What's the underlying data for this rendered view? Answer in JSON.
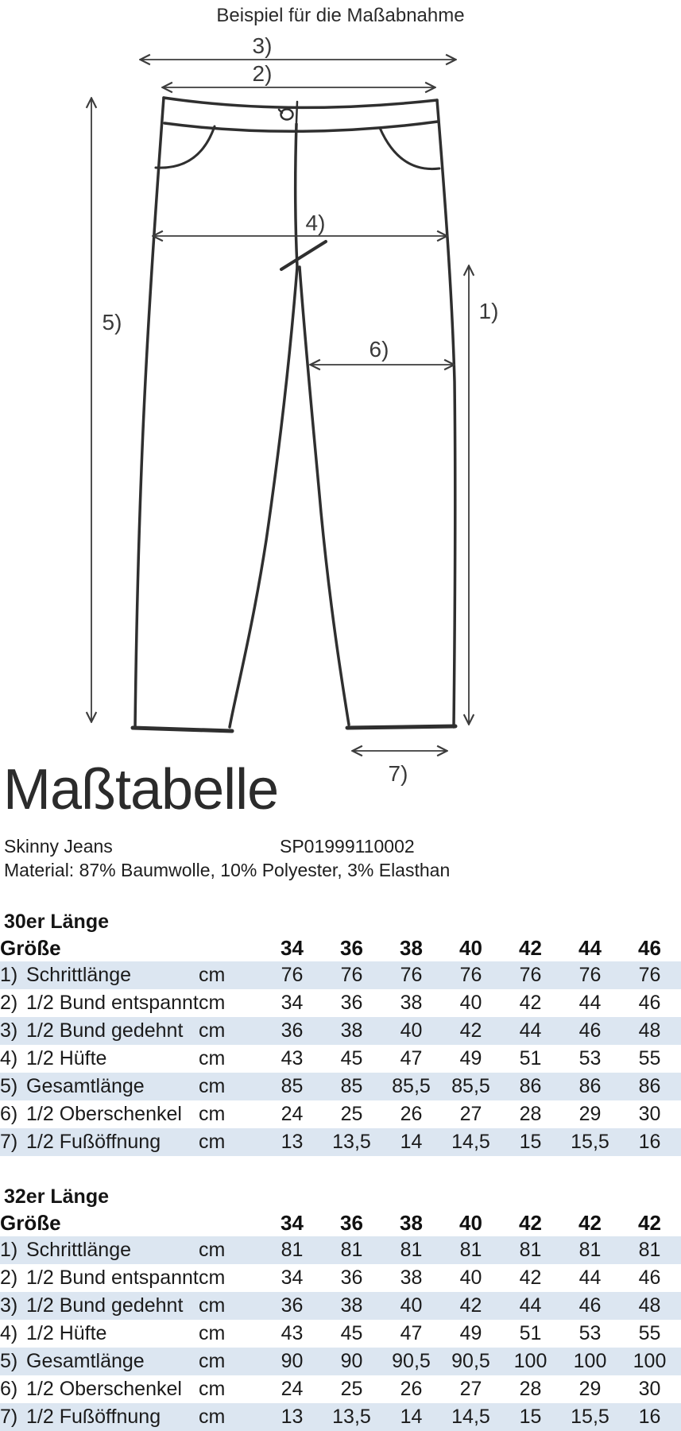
{
  "page_title": "Beispiel für die Maßabnahme",
  "heading": "Maßtabelle",
  "diagram": {
    "labels": [
      "1)",
      "2)",
      "3)",
      "4)",
      "5)",
      "6)",
      "7)"
    ]
  },
  "product": {
    "name": "Skinny Jeans",
    "sku": "SP01999110002",
    "material": "Material: 87% Baumwolle, 10% Polyester, 3% Elasthan"
  },
  "colors": {
    "row_highlight": "#dce6f1",
    "line": "#2f2f2f",
    "arrow": "#3c3c3c"
  },
  "tables": [
    {
      "section_title": "30er Länge",
      "size_row_label": "Größe",
      "sizes": [
        "34",
        "36",
        "38",
        "40",
        "42",
        "44",
        "46"
      ],
      "rows": [
        {
          "num": "1)",
          "name": "Schrittlänge",
          "unit": "cm",
          "values": [
            "76",
            "76",
            "76",
            "76",
            "76",
            "76",
            "76"
          ]
        },
        {
          "num": "2)",
          "name": "1/2 Bund entspannt",
          "unit": "cm",
          "values": [
            "34",
            "36",
            "38",
            "40",
            "42",
            "44",
            "46"
          ]
        },
        {
          "num": "3)",
          "name": "1/2 Bund gedehnt",
          "unit": "cm",
          "values": [
            "36",
            "38",
            "40",
            "42",
            "44",
            "46",
            "48"
          ]
        },
        {
          "num": "4)",
          "name": "1/2 Hüfte",
          "unit": "cm",
          "values": [
            "43",
            "45",
            "47",
            "49",
            "51",
            "53",
            "55"
          ]
        },
        {
          "num": "5)",
          "name": "Gesamtlänge",
          "unit": "cm",
          "values": [
            "85",
            "85",
            "85,5",
            "85,5",
            "86",
            "86",
            "86"
          ]
        },
        {
          "num": "6)",
          "name": "1/2 Oberschenkel",
          "unit": "cm",
          "values": [
            "24",
            "25",
            "26",
            "27",
            "28",
            "29",
            "30"
          ]
        },
        {
          "num": "7)",
          "name": "1/2 Fußöffnung",
          "unit": "cm",
          "values": [
            "13",
            "13,5",
            "14",
            "14,5",
            "15",
            "15,5",
            "16"
          ]
        }
      ]
    },
    {
      "section_title": "32er Länge",
      "size_row_label": "Größe",
      "sizes": [
        "34",
        "36",
        "38",
        "40",
        "42",
        "42",
        "42"
      ],
      "rows": [
        {
          "num": "1)",
          "name": "Schrittlänge",
          "unit": "cm",
          "values": [
            "81",
            "81",
            "81",
            "81",
            "81",
            "81",
            "81"
          ]
        },
        {
          "num": "2)",
          "name": "1/2 Bund entspannt",
          "unit": "cm",
          "values": [
            "34",
            "36",
            "38",
            "40",
            "42",
            "44",
            "46"
          ]
        },
        {
          "num": "3)",
          "name": "1/2 Bund gedehnt",
          "unit": "cm",
          "values": [
            "36",
            "38",
            "40",
            "42",
            "44",
            "46",
            "48"
          ]
        },
        {
          "num": "4)",
          "name": "1/2 Hüfte",
          "unit": "cm",
          "values": [
            "43",
            "45",
            "47",
            "49",
            "51",
            "53",
            "55"
          ]
        },
        {
          "num": "5)",
          "name": "Gesamtlänge",
          "unit": "cm",
          "values": [
            "90",
            "90",
            "90,5",
            "90,5",
            "100",
            "100",
            "100"
          ]
        },
        {
          "num": "6)",
          "name": "1/2 Oberschenkel",
          "unit": "cm",
          "values": [
            "24",
            "25",
            "26",
            "27",
            "28",
            "29",
            "30"
          ]
        },
        {
          "num": "7)",
          "name": "1/2 Fußöffnung",
          "unit": "cm",
          "values": [
            "13",
            "13,5",
            "14",
            "14,5",
            "15",
            "15,5",
            "16"
          ]
        }
      ]
    }
  ]
}
